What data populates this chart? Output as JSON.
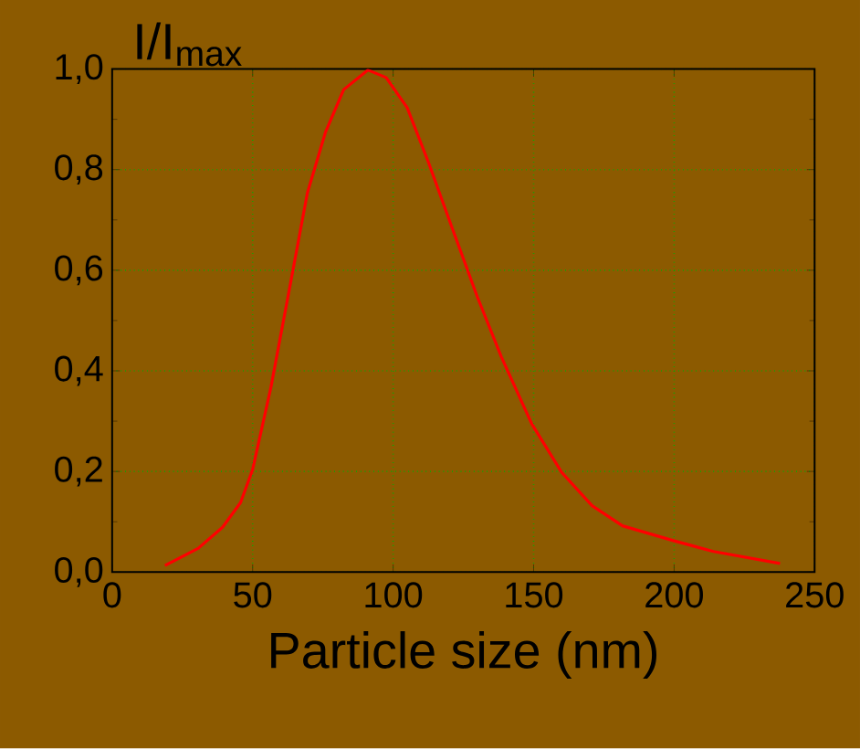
{
  "chart_data": {
    "type": "line",
    "xlabel": "Particle size (nm)",
    "ylabel": "I/I$_{max}$",
    "xlim": [
      0,
      250
    ],
    "xticks": [
      0,
      50,
      100,
      150,
      200,
      250
    ],
    "ylim": [
      0,
      1.0
    ],
    "yticks": [
      {
        "value": 0,
        "label": "0,0"
      },
      {
        "value": 0.2,
        "label": "0,2"
      },
      {
        "value": 0.4,
        "label": "0,4"
      },
      {
        "value": 0.6,
        "label": "0,6"
      },
      {
        "value": 0.8,
        "label": "0,8"
      },
      {
        "value": 1.0,
        "label": "1,0"
      }
    ],
    "grid": true,
    "marker": "none",
    "line_style": "solid",
    "series": [
      {
        "color": "#ff0000",
        "x": [
          18.8,
          30.6,
          39.3,
          45.7,
          50,
          56.5,
          63,
          69.5,
          75.9,
          82.4,
          91,
          97.5,
          105,
          112.6,
          121.2,
          129.9,
          138.5,
          149.3,
          160,
          170.8,
          181.6,
          200,
          214,
          237.7
        ],
        "values": [
          0.013,
          0.047,
          0.089,
          0.138,
          0.204,
          0.367,
          0.56,
          0.754,
          0.874,
          0.959,
          0.998,
          0.983,
          0.923,
          0.814,
          0.681,
          0.548,
          0.428,
          0.295,
          0.198,
          0.132,
          0.092,
          0.062,
          0.041,
          0.017
        ]
      }
    ]
  }
}
